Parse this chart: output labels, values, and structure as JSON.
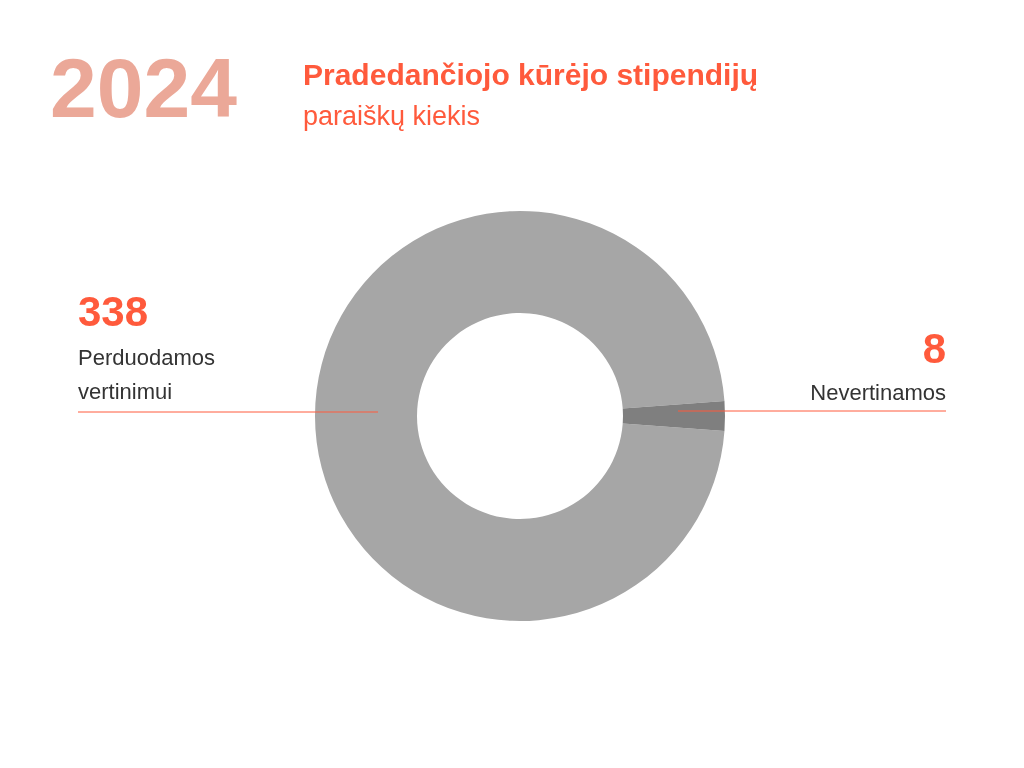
{
  "chart_data": {
    "type": "donut",
    "title": "Pradedančiojo kūrėjo stipendijų",
    "subtitle": "paraiškų kiekis",
    "annotations": [
      "2024"
    ],
    "categories": [
      "Perduodamos vertinimui",
      "Nevertinamos"
    ],
    "values": [
      338,
      8
    ],
    "colors": [
      "#a6a6a6",
      "#7f7f7f"
    ],
    "data_labels": true
  }
}
